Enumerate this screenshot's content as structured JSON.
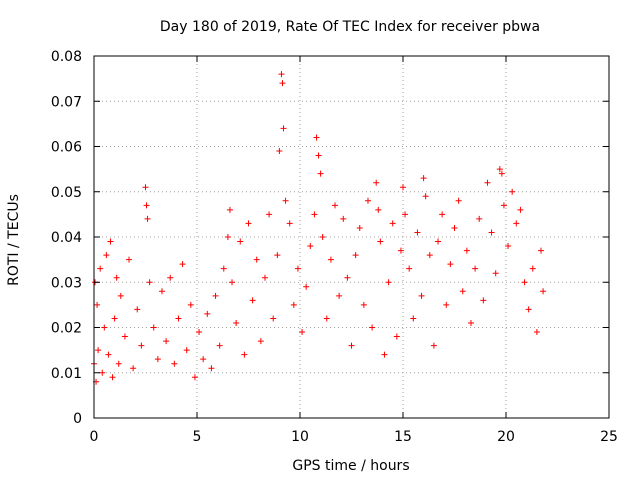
{
  "chart_data": {
    "type": "scatter",
    "title": "Day 180 of 2019, Rate Of TEC Index for receiver pbwa",
    "xlabel": "GPS time / hours",
    "ylabel": "ROTI / TECUs",
    "xlim": [
      0,
      25
    ],
    "ylim": [
      0,
      0.08
    ],
    "x_ticks": [
      "0",
      "5",
      "10",
      "15",
      "20",
      "25"
    ],
    "y_ticks": [
      "0",
      "0.01",
      "0.02",
      "0.03",
      "0.04",
      "0.05",
      "0.06",
      "0.07",
      "0.08"
    ],
    "grid": true,
    "marker": "+",
    "color": "#ff0000",
    "series": [
      {
        "x": [
          0.0,
          0.05,
          0.1,
          0.15,
          0.2,
          0.3,
          0.4,
          0.5,
          0.6,
          0.7,
          0.8,
          0.9,
          1.0,
          1.1,
          1.2,
          1.3,
          1.5,
          1.7,
          1.9,
          2.1,
          2.3,
          2.5,
          2.55,
          2.6,
          2.7,
          2.9,
          3.1,
          3.3,
          3.5,
          3.7,
          3.9,
          4.1,
          4.3,
          4.5,
          4.7,
          4.9,
          5.1,
          5.3,
          5.5,
          5.7,
          5.9,
          6.1,
          6.3,
          6.5,
          6.6,
          6.7,
          6.9,
          7.1,
          7.3,
          7.5,
          7.7,
          7.9,
          8.1,
          8.3,
          8.5,
          8.7,
          8.9,
          9.0,
          9.1,
          9.15,
          9.2,
          9.3,
          9.5,
          9.7,
          9.9,
          10.1,
          10.3,
          10.5,
          10.7,
          10.8,
          10.9,
          11.0,
          11.1,
          11.3,
          11.5,
          11.7,
          11.9,
          12.1,
          12.3,
          12.5,
          12.7,
          12.9,
          13.1,
          13.3,
          13.5,
          13.7,
          13.8,
          13.9,
          14.1,
          14.3,
          14.5,
          14.7,
          14.9,
          15.0,
          15.1,
          15.3,
          15.5,
          15.7,
          15.9,
          16.0,
          16.1,
          16.3,
          16.5,
          16.7,
          16.9,
          17.1,
          17.3,
          17.5,
          17.7,
          17.9,
          18.1,
          18.3,
          18.5,
          18.7,
          18.9,
          19.1,
          19.3,
          19.5,
          19.7,
          19.8,
          19.9,
          20.1,
          20.3,
          20.5,
          20.7,
          20.9,
          21.1,
          21.3,
          21.5,
          21.7,
          21.8
        ],
        "y": [
          0.012,
          0.03,
          0.008,
          0.025,
          0.015,
          0.033,
          0.01,
          0.02,
          0.036,
          0.014,
          0.039,
          0.009,
          0.022,
          0.031,
          0.012,
          0.027,
          0.018,
          0.035,
          0.011,
          0.024,
          0.016,
          0.051,
          0.047,
          0.044,
          0.03,
          0.02,
          0.013,
          0.028,
          0.017,
          0.031,
          0.012,
          0.022,
          0.034,
          0.015,
          0.025,
          0.009,
          0.019,
          0.013,
          0.023,
          0.011,
          0.027,
          0.016,
          0.033,
          0.04,
          0.046,
          0.03,
          0.021,
          0.039,
          0.014,
          0.043,
          0.026,
          0.035,
          0.017,
          0.031,
          0.045,
          0.022,
          0.036,
          0.059,
          0.076,
          0.074,
          0.064,
          0.048,
          0.043,
          0.025,
          0.033,
          0.019,
          0.029,
          0.038,
          0.045,
          0.062,
          0.058,
          0.054,
          0.04,
          0.022,
          0.035,
          0.047,
          0.027,
          0.044,
          0.031,
          0.016,
          0.036,
          0.042,
          0.025,
          0.048,
          0.02,
          0.052,
          0.046,
          0.039,
          0.014,
          0.03,
          0.043,
          0.018,
          0.037,
          0.051,
          0.045,
          0.033,
          0.022,
          0.041,
          0.027,
          0.053,
          0.049,
          0.036,
          0.016,
          0.039,
          0.045,
          0.025,
          0.034,
          0.042,
          0.048,
          0.028,
          0.037,
          0.021,
          0.033,
          0.044,
          0.026,
          0.052,
          0.041,
          0.032,
          0.055,
          0.054,
          0.047,
          0.038,
          0.05,
          0.043,
          0.046,
          0.03,
          0.024,
          0.033,
          0.019,
          0.037,
          0.028
        ]
      }
    ]
  }
}
